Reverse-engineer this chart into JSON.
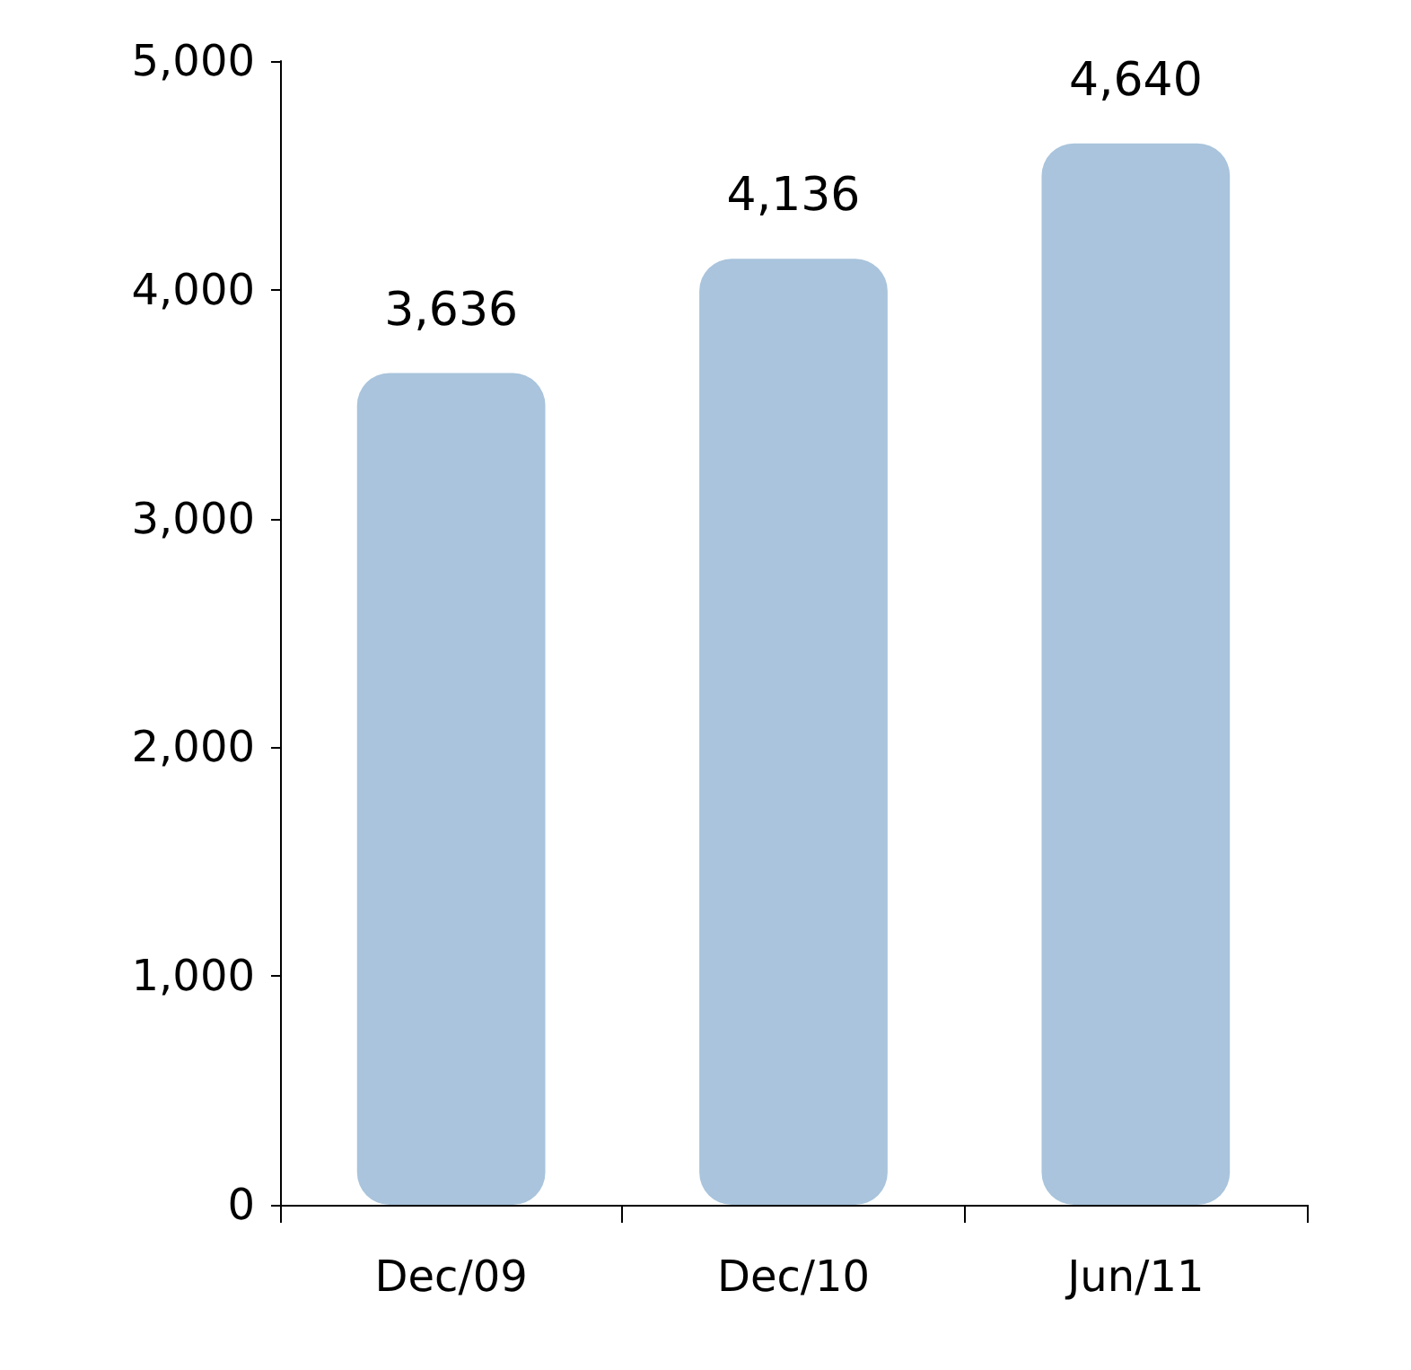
{
  "chart_data": {
    "type": "bar",
    "categories": [
      "Dec/09",
      "Dec/10",
      "Jun/11"
    ],
    "values": [
      3636,
      4136,
      4640
    ],
    "value_labels": [
      "3,636",
      "4,136",
      "4,640"
    ],
    "color": "#a9c4dc",
    "ylim": [
      0,
      5000
    ],
    "yticks": [
      {
        "value": 0,
        "label": "0"
      },
      {
        "value": 1000,
        "label": "1,000"
      },
      {
        "value": 2000,
        "label": "2,000"
      },
      {
        "value": 3000,
        "label": "3,000"
      },
      {
        "value": 4000,
        "label": "4,000"
      },
      {
        "value": 5000,
        "label": "5,000"
      }
    ],
    "grid": false
  }
}
